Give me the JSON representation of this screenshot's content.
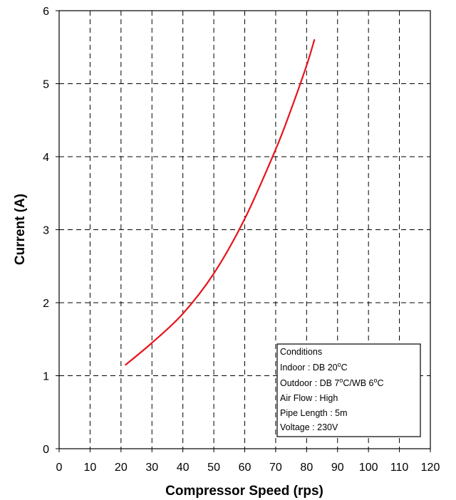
{
  "chart_data": {
    "type": "line",
    "xlabel": "Compressor Speed (rps)",
    "ylabel": "Current (A)",
    "xlim": [
      0,
      120
    ],
    "ylim": [
      0,
      6
    ],
    "x_ticks": [
      "0",
      "10",
      "20",
      "30",
      "40",
      "50",
      "60",
      "70",
      "80",
      "90",
      "100",
      "110",
      "120"
    ],
    "y_ticks": [
      "0",
      "1",
      "2",
      "3",
      "4",
      "5",
      "6"
    ],
    "grid": true,
    "series": [
      {
        "color": "#e8141b",
        "x": [
          21.5,
          30,
          40,
          50,
          60,
          70,
          75,
          80,
          82.5
        ],
        "y": [
          1.15,
          1.45,
          1.85,
          2.4,
          3.15,
          4.1,
          4.65,
          5.25,
          5.6
        ]
      }
    ],
    "legend_placement": "bottom-right",
    "conditions_box": {
      "title": "Conditions",
      "indoor": {
        "label": "Indoor : DB 20",
        "sup": "o",
        "end": "C"
      },
      "outdoor": {
        "label": "Outdoor : DB 7",
        "sup1": "o",
        "mid": "C/WB 6",
        "sup2": "o",
        "end": "C"
      },
      "air_flow": "Air Flow : High",
      "pipe_length": "Pipe Length : 5m",
      "voltage": "Voltage : 230V"
    }
  }
}
